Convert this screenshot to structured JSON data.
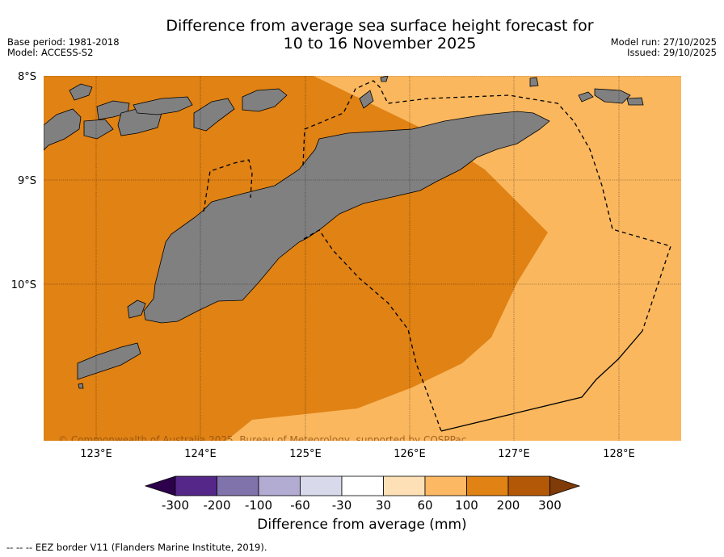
{
  "header": {
    "title_line1": "Difference from average sea surface height forecast for",
    "title_line2": "10 to 16 November 2025",
    "base_period": "Base period: 1981-2018",
    "model": "Model: ACCESS-S2",
    "model_run": "Model run: 27/10/2025",
    "issued": "Issued: 29/10/2025"
  },
  "map": {
    "latitudes": [
      "8°S",
      "9°S",
      "10°S"
    ],
    "longitudes": [
      "123°E",
      "124°E",
      "125°E",
      "126°E",
      "127°E",
      "128°E"
    ],
    "copyright": "© Commonwealth of Australia 2025, Bureau of Meteorology, supported by COSPPac",
    "colors": {
      "band_100_200": "#e08214",
      "band_60_100": "#fab75e",
      "land": "#808080"
    }
  },
  "colorbar": {
    "ticks": [
      "-300",
      "-200",
      "-100",
      "-60",
      "-30",
      "30",
      "60",
      "100",
      "200",
      "300"
    ],
    "colors": [
      "#2d004b",
      "#542788",
      "#8073ac",
      "#b2abd2",
      "#d8daeb",
      "#ffffff",
      "#fee0b6",
      "#fdb863",
      "#e08214",
      "#b35806",
      "#7f3b08"
    ],
    "title": "Difference from average (mm)"
  },
  "footnote": "--  --  -- EEZ border V11 (Flanders Marine Institute, 2019)."
}
